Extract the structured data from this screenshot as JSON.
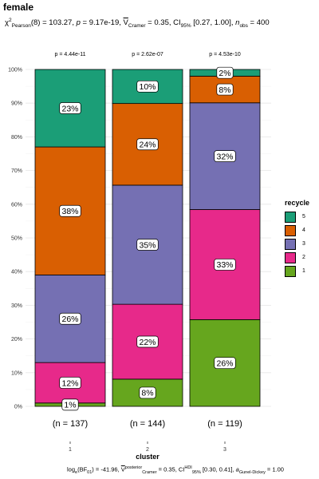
{
  "title": "female",
  "subtitle": {
    "chi": "χ",
    "chi_sup": "2",
    "chi_sub": "Pearson",
    "chi_val": "(8) = 103.27, ",
    "p_label": "p",
    "p_val": " = 9.17e-19, ",
    "v_label": "V",
    "v_sub": "Cramer",
    "v_val": " = 0.35, CI",
    "ci_sub": "95%",
    "ci_val": " [0.27, 1.00], ",
    "n_label": "n",
    "n_sub": "obs",
    "n_val": " = 400"
  },
  "caption": {
    "bf": "log",
    "bf_sub": "e",
    "bf_val": "(BF",
    "bf_sub2": "01",
    "bf_val2": ") = -41.96, ",
    "v_label": "V",
    "v_sup": "posterior",
    "v_sub": "Cramer",
    "v_val": " = 0.35, CI",
    "ci_sup": "HDI",
    "ci_sub": "95%",
    "ci_val": " [0.30, 0.41], ",
    "a_label": "a",
    "a_sub": "Gunel-Dickey",
    "a_val": " = 1.00"
  },
  "legend": {
    "title": "recycle",
    "items": [
      {
        "label": "5",
        "color": "#1B9E77"
      },
      {
        "label": "4",
        "color": "#D95F02"
      },
      {
        "label": "3",
        "color": "#7570B3"
      },
      {
        "label": "2",
        "color": "#E7298A"
      },
      {
        "label": "1",
        "color": "#66A61E"
      }
    ]
  },
  "chart_data": {
    "type": "bar",
    "stacked": true,
    "percent": true,
    "categories": [
      "1",
      "2",
      "3"
    ],
    "xlabel": "cluster",
    "ylabel": "",
    "ylim": [
      0,
      100
    ],
    "yticks": [
      "0%",
      "10%",
      "20%",
      "30%",
      "40%",
      "50%",
      "60%",
      "70%",
      "80%",
      "90%",
      "100%"
    ],
    "series": [
      {
        "name": "1",
        "color": "#66A61E",
        "values": [
          1,
          8,
          26
        ]
      },
      {
        "name": "2",
        "color": "#E7298A",
        "values": [
          12,
          22,
          33
        ]
      },
      {
        "name": "3",
        "color": "#7570B3",
        "values": [
          26,
          35,
          32
        ]
      },
      {
        "name": "4",
        "color": "#D95F02",
        "values": [
          38,
          24,
          8
        ]
      },
      {
        "name": "5",
        "color": "#1B9E77",
        "values": [
          23,
          10,
          2
        ]
      }
    ],
    "segment_labels": [
      [
        "1%",
        "12%",
        "26%",
        "38%",
        "23%"
      ],
      [
        "8%",
        "22%",
        "35%",
        "24%",
        "10%"
      ],
      [
        "26%",
        "33%",
        "32%",
        "8%",
        "2%"
      ]
    ],
    "p_values": [
      "p = 4.44e-11",
      "p = 2.62e-07",
      "p = 4.53e-10"
    ],
    "n_labels": [
      "(n = 137)",
      "(n = 144)",
      "(n = 119)"
    ],
    "grid": true
  }
}
